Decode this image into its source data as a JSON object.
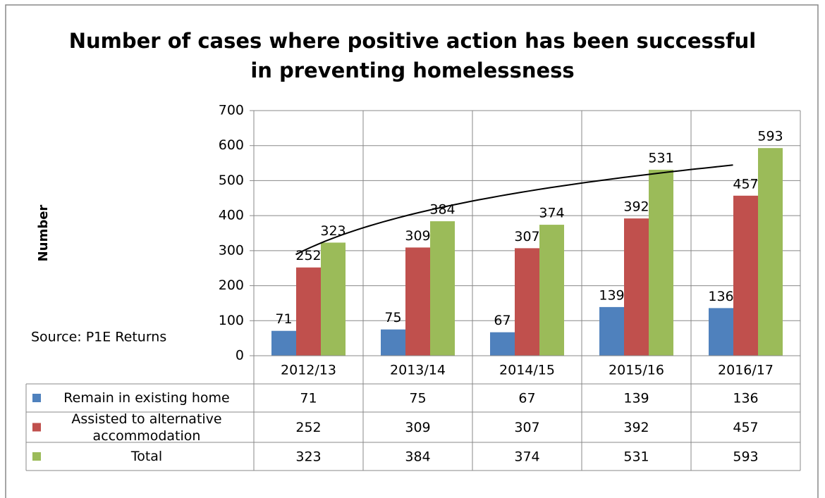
{
  "chart_data": {
    "type": "bar",
    "title": [
      "Number of cases where positive action has been successful",
      "in preventing homelessness"
    ],
    "y_label": "Number",
    "annotation": "Source: P1E Returns",
    "categories": [
      "2012/13",
      "2013/14",
      "2014/15",
      "2015/16",
      "2016/17"
    ],
    "series": [
      {
        "name": "Remain in existing home",
        "color": "#4f81bd",
        "values": [
          71,
          75,
          67,
          139,
          136
        ]
      },
      {
        "name": "Assisted to alternative accommodation",
        "color": "#c0504d",
        "values": [
          252,
          309,
          307,
          392,
          457
        ]
      },
      {
        "name": "Total",
        "color": "#9bbb59",
        "values": [
          323,
          384,
          374,
          531,
          593
        ]
      }
    ],
    "ylim": [
      0,
      700
    ],
    "yticks": [
      0,
      100,
      200,
      300,
      400,
      500,
      600,
      700
    ],
    "grid": true,
    "data_labels": true,
    "data_table": true,
    "trendline": {
      "type": "logarithmic",
      "series": 2
    }
  }
}
